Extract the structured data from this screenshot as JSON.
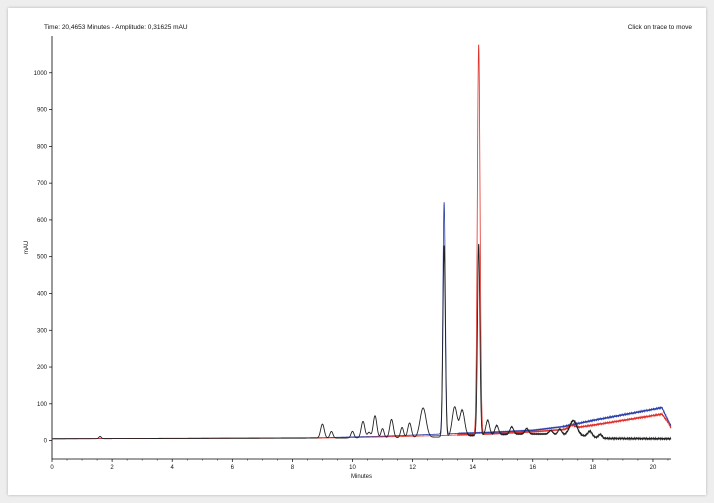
{
  "header": {
    "status_text": "Time: 20,4653 Minutes - Amplitude: 0,31625 mAU",
    "hint_text": "Click on trace to move"
  },
  "colors": {
    "blue_trace": "#2b3fa8",
    "red_trace": "#e0302a",
    "black_trace": "#222222"
  },
  "chart_data": {
    "type": "line",
    "xlabel": "Minutes",
    "ylabel": "mAU",
    "xlim": [
      0,
      20.6
    ],
    "ylim": [
      -50,
      1100
    ],
    "x_ticks": [
      0,
      2,
      4,
      6,
      8,
      10,
      12,
      14,
      16,
      18,
      20
    ],
    "y_ticks": [
      0,
      100,
      200,
      300,
      400,
      500,
      600,
      700,
      800,
      900,
      1000
    ],
    "grid": false,
    "series": [
      {
        "color": "#2b3fa8",
        "baseline": [
          [
            0,
            5
          ],
          [
            9,
            8
          ],
          [
            11,
            12
          ],
          [
            13,
            18
          ],
          [
            14.5,
            22
          ],
          [
            16,
            28
          ],
          [
            17,
            38
          ],
          [
            18,
            55
          ],
          [
            19,
            70
          ],
          [
            20,
            85
          ],
          [
            20.3,
            90
          ],
          [
            20.5,
            55
          ],
          [
            20.6,
            40
          ]
        ],
        "peaks": [
          [
            13.05,
            630,
            0.04
          ]
        ]
      },
      {
        "color": "#e0302a",
        "baseline": [
          [
            0,
            5
          ],
          [
            9,
            7
          ],
          [
            11,
            10
          ],
          [
            13,
            14
          ],
          [
            14.5,
            18
          ],
          [
            16,
            24
          ],
          [
            17,
            30
          ],
          [
            18,
            42
          ],
          [
            19,
            55
          ],
          [
            20,
            68
          ],
          [
            20.3,
            72
          ],
          [
            20.5,
            50
          ],
          [
            20.6,
            35
          ]
        ],
        "peaks": [
          [
            14.2,
            1060,
            0.045
          ],
          [
            17.3,
            8,
            0.1
          ]
        ]
      },
      {
        "color": "#222222",
        "baseline": [
          [
            0,
            5
          ],
          [
            9.5,
            7
          ],
          [
            12,
            8
          ],
          [
            13,
            10
          ],
          [
            14,
            14
          ],
          [
            14.7,
            16
          ],
          [
            15.5,
            18
          ],
          [
            16.5,
            18
          ],
          [
            17.5,
            14
          ],
          [
            18,
            10
          ],
          [
            18.3,
            6
          ],
          [
            20.6,
            5
          ]
        ],
        "peaks": [
          [
            1.6,
            6,
            0.04
          ],
          [
            9.0,
            38,
            0.06
          ],
          [
            9.3,
            18,
            0.05
          ],
          [
            10.0,
            18,
            0.05
          ],
          [
            10.35,
            45,
            0.06
          ],
          [
            10.55,
            15,
            0.05
          ],
          [
            10.75,
            60,
            0.06
          ],
          [
            11.0,
            25,
            0.05
          ],
          [
            11.3,
            50,
            0.06
          ],
          [
            11.65,
            28,
            0.05
          ],
          [
            11.9,
            40,
            0.06
          ],
          [
            12.35,
            80,
            0.1
          ],
          [
            13.05,
            520,
            0.04
          ],
          [
            13.4,
            80,
            0.08
          ],
          [
            13.65,
            70,
            0.08
          ],
          [
            14.2,
            520,
            0.04
          ],
          [
            14.5,
            40,
            0.06
          ],
          [
            14.8,
            25,
            0.06
          ],
          [
            15.3,
            20,
            0.06
          ],
          [
            15.8,
            15,
            0.06
          ],
          [
            16.6,
            10,
            0.06
          ],
          [
            16.9,
            15,
            0.06
          ],
          [
            17.35,
            40,
            0.12
          ],
          [
            17.9,
            15,
            0.07
          ],
          [
            18.25,
            10,
            0.06
          ]
        ]
      }
    ]
  }
}
